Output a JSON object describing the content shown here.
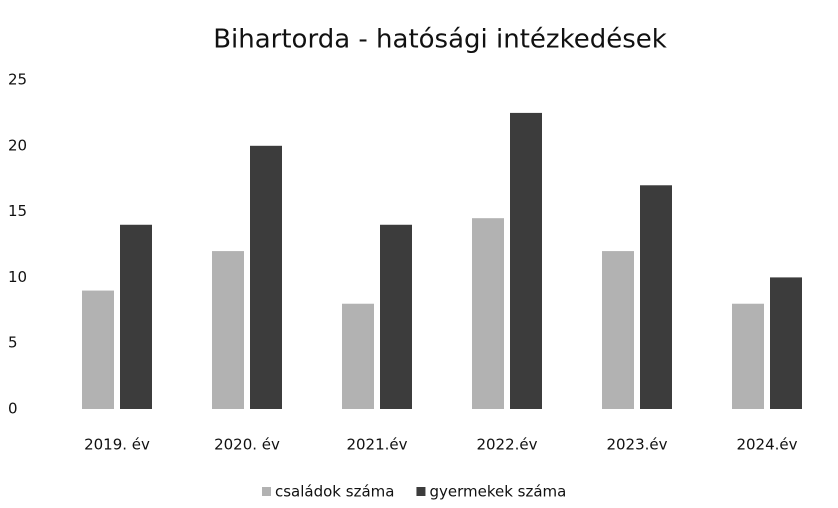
{
  "chart_data": {
    "type": "bar",
    "title": "Bihartorda - hatósági intézkedések",
    "categories": [
      "2019. év",
      "2020. év",
      "2021.év",
      "2022.év",
      "2023.év",
      "2024.év"
    ],
    "series": [
      {
        "name": "családok száma",
        "color": "#b2b2b2",
        "values": [
          9,
          12,
          8,
          14.5,
          12,
          8
        ]
      },
      {
        "name": "gyermekek száma",
        "color": "#3c3c3c",
        "values": [
          14,
          20,
          14,
          22.5,
          17,
          10
        ]
      }
    ],
    "ylim": [
      0,
      25
    ],
    "yticks": [
      0,
      5,
      10,
      15,
      20,
      25
    ],
    "grid": false,
    "legend": "bottom"
  }
}
